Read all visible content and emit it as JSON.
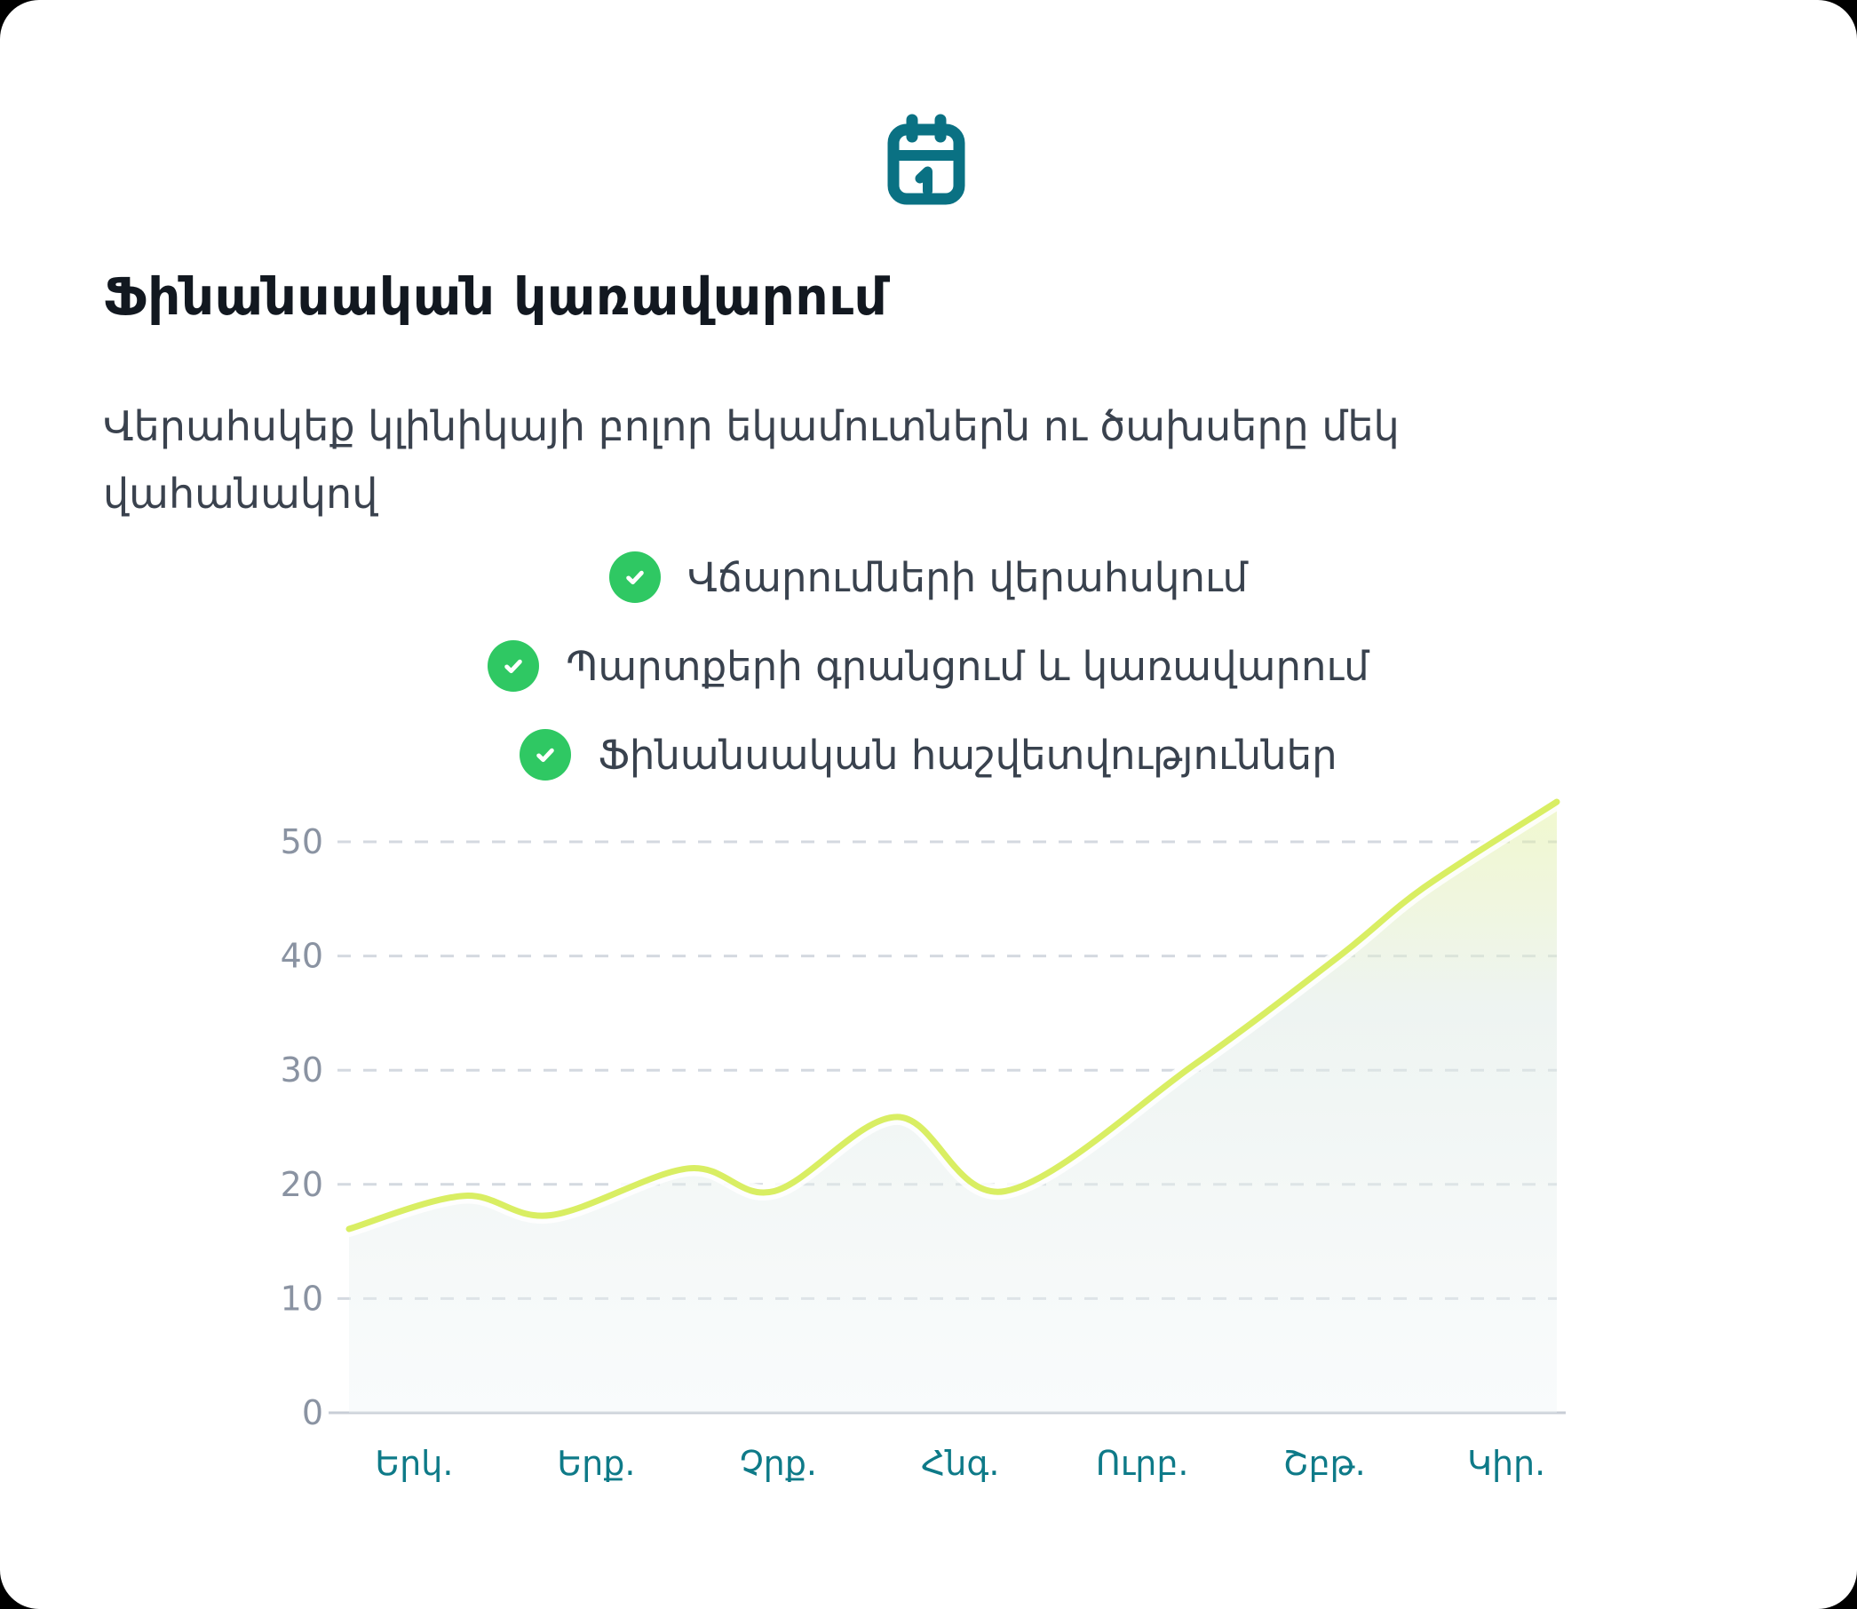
{
  "header": {
    "icon": "calendar-icon",
    "title": "Ֆինանսական կառավարում",
    "subtitle": "Վերահսկեք կլինիկայի բոլոր եկամուտներն ու ծախսերը մեկ վահանակով"
  },
  "features": [
    {
      "icon": "check-circle-icon",
      "label": "Վճարումների վերահսկում"
    },
    {
      "icon": "check-circle-icon",
      "label": "Պարտքերի գրանցում և կառավարում"
    },
    {
      "icon": "check-circle-icon",
      "label": "Ֆինանսական հաշվետվություններ"
    }
  ],
  "colors": {
    "accent_teal": "#0a7183",
    "x_label_teal": "#0e7a88",
    "check_green": "#2fc863",
    "line_lime": "#d9ee63",
    "grid_gray": "#d4d9e0",
    "axis_gray": "#c8ced6",
    "y_label_gray": "#8a93a2",
    "title_dark": "#121820",
    "body_gray": "#3a424e"
  },
  "chart_data": {
    "type": "area",
    "title": "",
    "xlabel": "",
    "ylabel": "",
    "categories": [
      "Երկ.",
      "Երք.",
      "Չրք.",
      "Հնգ.",
      "Ուրբ.",
      "Շբթ.",
      "Կիր."
    ],
    "approx_values_at_categories": [
      18.2,
      17.5,
      19.7,
      25.3,
      26.7,
      39,
      51
    ],
    "y_ticks": [
      0,
      10,
      20,
      30,
      40,
      50
    ],
    "ylim": [
      0,
      55
    ],
    "grid": "horizontal-dashed",
    "legend": "none",
    "series": [
      {
        "name": "weekly-trend",
        "points": [
          {
            "x": 0.0,
            "v": 16.1
          },
          {
            "x": 0.095,
            "v": 19.0
          },
          {
            "x": 0.167,
            "v": 17.3
          },
          {
            "x": 0.281,
            "v": 21.4
          },
          {
            "x": 0.352,
            "v": 19.4
          },
          {
            "x": 0.454,
            "v": 25.9
          },
          {
            "x": 0.543,
            "v": 19.4
          },
          {
            "x": 0.7,
            "v": 30.5
          },
          {
            "x": 0.82,
            "v": 40.0
          },
          {
            "x": 0.89,
            "v": 46.0
          },
          {
            "x": 1.0,
            "v": 53.5
          }
        ]
      }
    ]
  }
}
